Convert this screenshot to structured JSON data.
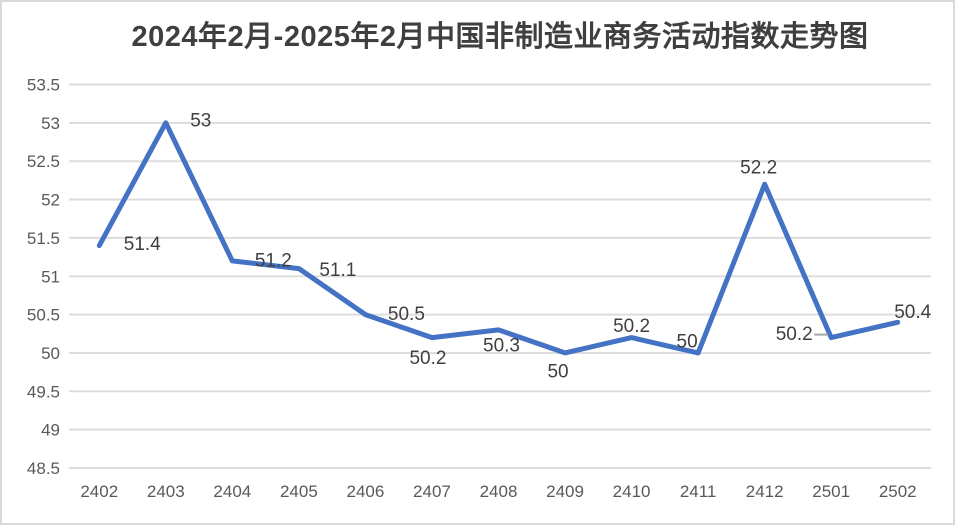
{
  "page": {
    "background": "#ffffff",
    "border_color": "#d9d9d9"
  },
  "chart_data": {
    "type": "line",
    "title": "2024年2月-2025年2月中国非制造业商务活动指数走势图",
    "categories": [
      "2402",
      "2403",
      "2404",
      "2405",
      "2406",
      "2407",
      "2408",
      "2409",
      "2410",
      "2411",
      "2412",
      "2501",
      "2502"
    ],
    "values": [
      51.4,
      53,
      51.2,
      51.1,
      50.5,
      50.2,
      50.3,
      50,
      50.2,
      50,
      52.2,
      50.2,
      50.4
    ],
    "data_labels": [
      "51.4",
      "53",
      "51.2",
      "51.1",
      "50.5",
      "50.2",
      "50.3",
      "50",
      "50.2",
      "50",
      "52.2",
      "50.2",
      "50.4"
    ],
    "ylim": [
      48.5,
      53.5
    ],
    "ytick_step": 0.5,
    "yticks": [
      53.5,
      53,
      52.5,
      52,
      51.5,
      51,
      50.5,
      50,
      49.5,
      49,
      48.5
    ],
    "ytick_labels": [
      "53.5",
      "53",
      "52.5",
      "52",
      "51.5",
      "51",
      "50.5",
      "50",
      "49.5",
      "49",
      "48.5"
    ],
    "grid": true,
    "legend": "none",
    "colors": {
      "line": "#4472C4",
      "gridline": "#dddddd",
      "axis_text": "#595959",
      "data_label_text": "#404040",
      "title_text": "#3f3f3f",
      "leader_line": "#a6a6a6"
    }
  }
}
